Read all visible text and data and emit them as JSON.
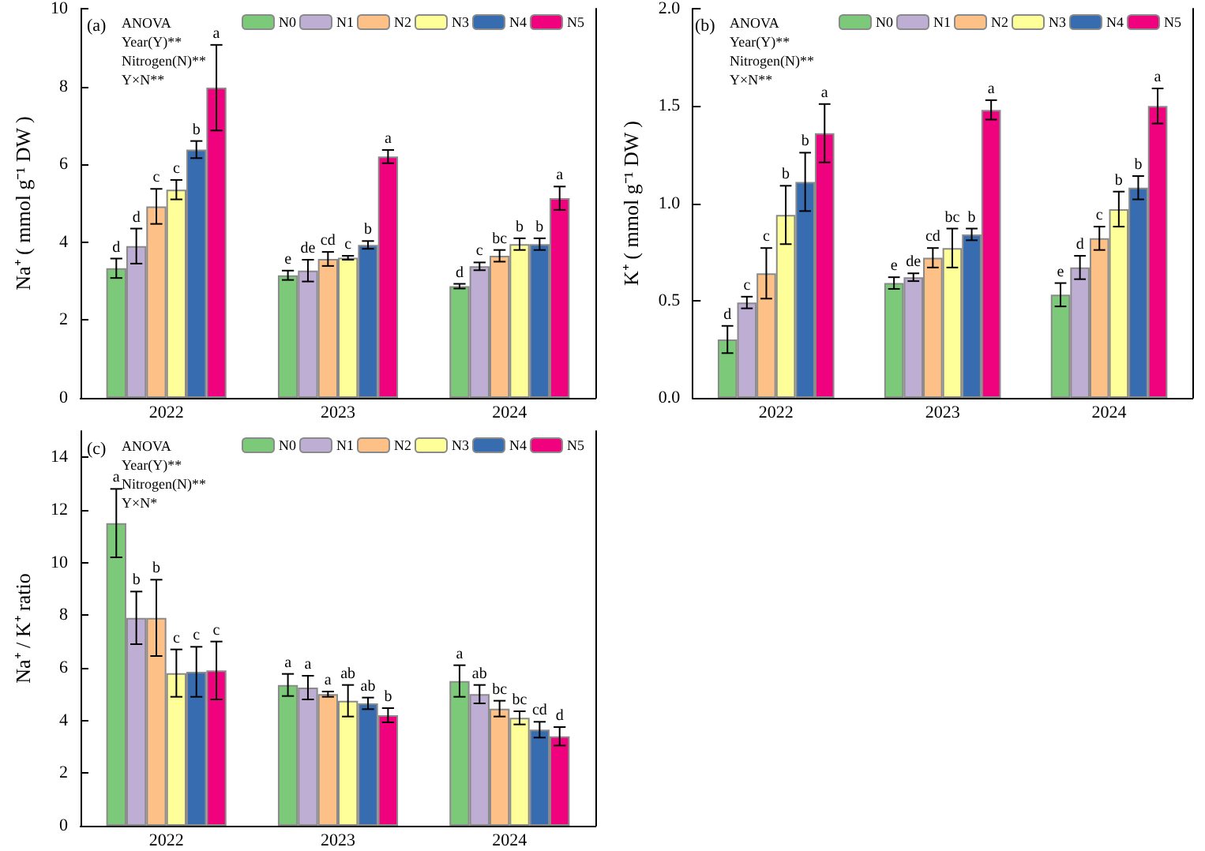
{
  "chart_data": [
    {
      "type": "bar",
      "ylabel": "Na⁺ ( mmol g⁻¹ DW )",
      "annotations": [
        "(a)",
        "ANOVA",
        "Year(Y)**",
        "Nitrogen(N)**",
        "Y×N**"
      ],
      "categories": [
        "2022",
        "2023",
        "2024"
      ],
      "ylim": [
        0,
        10
      ],
      "yticks": [
        0,
        2,
        4,
        6,
        8,
        10
      ],
      "legend": "top right",
      "series": [
        {
          "name": "N0",
          "color": "#7dc97a",
          "values": [
            3.33,
            3.15,
            2.87
          ],
          "errors": [
            0.25,
            0.12,
            0.06
          ],
          "value_labels": [
            "d",
            "e",
            "d"
          ]
        },
        {
          "name": "N1",
          "color": "#beaed4",
          "values": [
            3.9,
            3.27,
            3.38
          ],
          "errors": [
            0.45,
            0.28,
            0.1
          ],
          "value_labels": [
            "d",
            "de",
            "c"
          ]
        },
        {
          "name": "N2",
          "color": "#fdc086",
          "values": [
            4.92,
            3.57,
            3.65
          ],
          "errors": [
            0.45,
            0.18,
            0.15
          ],
          "value_labels": [
            "c",
            "cd",
            "bc"
          ]
        },
        {
          "name": "N3",
          "color": "#ffff99",
          "values": [
            5.35,
            3.6,
            3.95
          ],
          "errors": [
            0.25,
            0.05,
            0.15
          ],
          "value_labels": [
            "c",
            "c",
            "b"
          ]
        },
        {
          "name": "N4",
          "color": "#386cb0",
          "values": [
            6.38,
            3.93,
            3.95
          ],
          "errors": [
            0.22,
            0.1,
            0.15
          ],
          "value_labels": [
            "b",
            "b",
            "b"
          ]
        },
        {
          "name": "N5",
          "color": "#f0027f",
          "values": [
            7.97,
            6.2,
            5.13
          ],
          "errors": [
            1.1,
            0.17,
            0.3
          ],
          "value_labels": [
            "a",
            "a",
            "a"
          ]
        }
      ]
    },
    {
      "type": "bar",
      "ylabel": "K⁺ ( mmol g⁻¹ DW )",
      "annotations": [
        "(b)",
        "ANOVA",
        "Year(Y)**",
        "Nitrogen(N)**",
        "Y×N**"
      ],
      "categories": [
        "2022",
        "2023",
        "2024"
      ],
      "ylim": [
        0,
        2
      ],
      "yticks": [
        {
          "value": 0,
          "label": "0.0"
        },
        0.5,
        {
          "value": 1,
          "label": "1.0"
        },
        1.5,
        {
          "value": 2,
          "label": "2.0"
        }
      ],
      "legend": "top right",
      "series": [
        {
          "name": "N0",
          "color": "#7dc97a",
          "values": [
            0.3,
            0.59,
            0.53
          ],
          "errors": [
            0.07,
            0.03,
            0.06
          ],
          "value_labels": [
            "d",
            "e",
            "e"
          ]
        },
        {
          "name": "N1",
          "color": "#beaed4",
          "values": [
            0.49,
            0.62,
            0.67
          ],
          "errors": [
            0.03,
            0.02,
            0.06
          ],
          "value_labels": [
            "c",
            "de",
            "d"
          ]
        },
        {
          "name": "N2",
          "color": "#fdc086",
          "values": [
            0.64,
            0.72,
            0.82
          ],
          "errors": [
            0.13,
            0.05,
            0.06
          ],
          "value_labels": [
            "c",
            "cd",
            "c"
          ]
        },
        {
          "name": "N3",
          "color": "#ffff99",
          "values": [
            0.94,
            0.77,
            0.97
          ],
          "errors": [
            0.15,
            0.1,
            0.09
          ],
          "value_labels": [
            "b",
            "bc",
            "b"
          ]
        },
        {
          "name": "N4",
          "color": "#386cb0",
          "values": [
            1.11,
            0.84,
            1.08
          ],
          "errors": [
            0.15,
            0.03,
            0.06
          ],
          "value_labels": [
            "b",
            "b",
            "b"
          ]
        },
        {
          "name": "N5",
          "color": "#f0027f",
          "values": [
            1.36,
            1.48,
            1.5
          ],
          "errors": [
            0.15,
            0.05,
            0.09
          ],
          "value_labels": [
            "a",
            "a",
            "a"
          ]
        }
      ]
    },
    {
      "type": "bar",
      "ylabel": "Na⁺ / K⁺ ratio",
      "annotations": [
        "(c)",
        "ANOVA",
        "Year(Y)**",
        "Nitrogen(N)**",
        "Y×N*"
      ],
      "categories": [
        "2022",
        "2023",
        "2024"
      ],
      "ylim": [
        0,
        15
      ],
      "yticks": [
        0,
        2,
        4,
        6,
        8,
        10,
        12,
        14
      ],
      "legend": "top right",
      "series": [
        {
          "name": "N0",
          "color": "#7dc97a",
          "values": [
            11.5,
            5.35,
            5.5
          ],
          "errors": [
            1.3,
            0.42,
            0.6
          ],
          "value_labels": [
            "a",
            "a",
            "a"
          ]
        },
        {
          "name": "N1",
          "color": "#beaed4",
          "values": [
            7.9,
            5.25,
            5.0
          ],
          "errors": [
            1.0,
            0.45,
            0.35
          ],
          "value_labels": [
            "b",
            "a",
            "ab"
          ]
        },
        {
          "name": "N2",
          "color": "#fdc086",
          "values": [
            7.9,
            5.0,
            4.45
          ],
          "errors": [
            1.45,
            0.1,
            0.3
          ],
          "value_labels": [
            "b",
            "a",
            "bc"
          ]
        },
        {
          "name": "N3",
          "color": "#ffff99",
          "values": [
            5.8,
            4.75,
            4.1
          ],
          "errors": [
            0.9,
            0.6,
            0.25
          ],
          "value_labels": [
            "c",
            "ab",
            "bc"
          ]
        },
        {
          "name": "N4",
          "color": "#386cb0",
          "values": [
            5.85,
            4.65,
            3.65
          ],
          "errors": [
            0.95,
            0.22,
            0.3
          ],
          "value_labels": [
            "c",
            "ab",
            "cd"
          ]
        },
        {
          "name": "N5",
          "color": "#f0027f",
          "values": [
            5.9,
            4.2,
            3.4
          ],
          "errors": [
            1.1,
            0.27,
            0.35
          ],
          "value_labels": [
            "c",
            "b",
            "d"
          ]
        }
      ]
    }
  ]
}
